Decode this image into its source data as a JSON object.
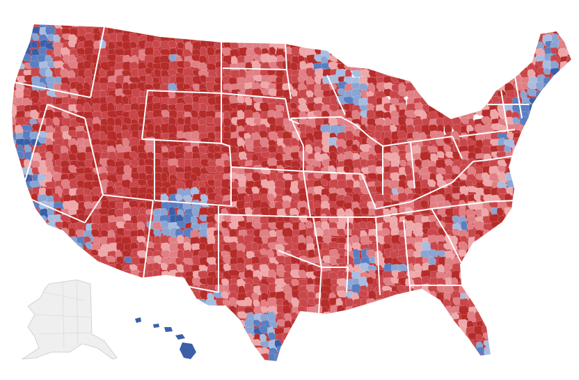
{
  "map": {
    "type": "us-county-choropleth",
    "regions_shown": [
      "contiguous-us",
      "alaska",
      "hawaii"
    ],
    "palette": {
      "dark_red": "#b52c2a",
      "red": "#c9474a",
      "light_red": "#e07f84",
      "pale_red": "#eea8aa",
      "pale_blue": "#a9bde0",
      "light_blue": "#8aa5d3",
      "blue": "#5a7ec1",
      "dark_blue": "#3b5ea8",
      "state_border": "#ffffff",
      "alaska_fill": "#efefef",
      "alaska_stroke": "#c9c9c9"
    },
    "legend": null,
    "title": null
  }
}
